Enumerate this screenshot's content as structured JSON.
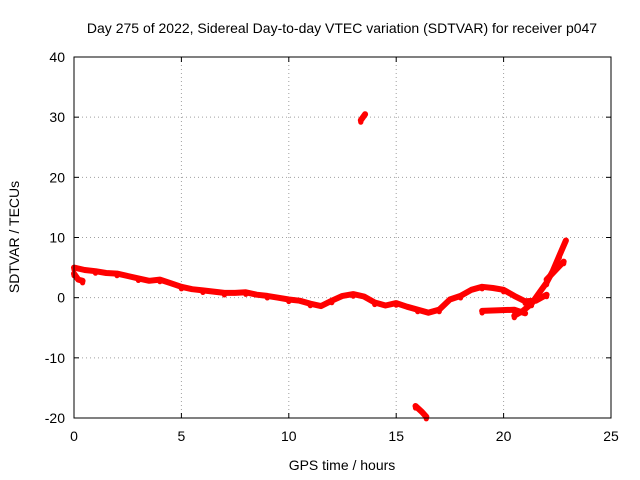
{
  "chart_data": {
    "type": "scatter",
    "title": "Day 275 of 2022, Sidereal Day-to-day VTEC variation (SDTVAR) for receiver p047",
    "xlabel": "GPS time / hours",
    "ylabel": "SDTVAR / TECUs",
    "xlim": [
      0,
      25
    ],
    "ylim": [
      -20,
      40
    ],
    "xticks": [
      0,
      5,
      10,
      15,
      20,
      25
    ],
    "yticks": [
      -20,
      -10,
      0,
      10,
      20,
      30,
      40
    ],
    "grid": true,
    "series": [
      {
        "name": "SDTVAR",
        "color": "#ff0000",
        "segments": [
          [
            [
              0.0,
              5.0
            ],
            [
              0.5,
              4.6
            ],
            [
              1.0,
              4.4
            ],
            [
              1.5,
              4.1
            ],
            [
              2.0,
              4.0
            ],
            [
              2.5,
              3.6
            ],
            [
              3.0,
              3.2
            ],
            [
              3.5,
              2.8
            ],
            [
              4.0,
              3.0
            ],
            [
              4.5,
              2.4
            ],
            [
              5.0,
              1.8
            ],
            [
              5.5,
              1.4
            ],
            [
              6.0,
              1.2
            ],
            [
              6.5,
              1.0
            ],
            [
              7.0,
              0.8
            ],
            [
              7.5,
              0.8
            ],
            [
              8.0,
              0.9
            ],
            [
              8.5,
              0.5
            ],
            [
              9.0,
              0.3
            ],
            [
              9.5,
              0.0
            ],
            [
              10.0,
              -0.3
            ],
            [
              10.5,
              -0.5
            ],
            [
              11.0,
              -1.0
            ],
            [
              11.5,
              -1.4
            ],
            [
              12.0,
              -0.5
            ],
            [
              12.5,
              0.3
            ],
            [
              13.0,
              0.6
            ],
            [
              13.5,
              0.2
            ],
            [
              14.0,
              -0.8
            ],
            [
              14.5,
              -1.3
            ],
            [
              15.0,
              -0.9
            ],
            [
              15.5,
              -1.5
            ],
            [
              16.0,
              -2.0
            ],
            [
              16.5,
              -2.5
            ],
            [
              17.0,
              -2.0
            ],
            [
              17.5,
              -0.3
            ],
            [
              18.0,
              0.3
            ],
            [
              18.5,
              1.3
            ],
            [
              19.0,
              1.8
            ],
            [
              19.5,
              1.6
            ],
            [
              20.0,
              1.3
            ],
            [
              20.5,
              0.3
            ],
            [
              21.0,
              -0.6
            ],
            [
              21.5,
              -0.5
            ],
            [
              22.0,
              0.5
            ]
          ],
          [
            [
              0.0,
              4.0
            ],
            [
              0.2,
              3.0
            ],
            [
              0.4,
              2.8
            ]
          ],
          [
            [
              19.0,
              -2.2
            ],
            [
              19.8,
              -2.1
            ],
            [
              20.5,
              -2.0
            ],
            [
              21.0,
              -2.6
            ]
          ],
          [
            [
              20.5,
              -3.0
            ],
            [
              20.9,
              -2.2
            ],
            [
              21.3,
              -1.0
            ],
            [
              21.7,
              1.0
            ],
            [
              22.0,
              2.5
            ],
            [
              22.3,
              4.5
            ],
            [
              22.6,
              7.0
            ],
            [
              22.9,
              9.5
            ]
          ],
          [
            [
              22.0,
              3.0
            ],
            [
              22.4,
              4.5
            ],
            [
              22.8,
              6.0
            ]
          ],
          [
            [
              13.35,
              29.5
            ],
            [
              13.55,
              30.5
            ]
          ],
          [
            [
              15.9,
              -18.0
            ],
            [
              16.2,
              -19.0
            ],
            [
              16.4,
              -19.8
            ]
          ]
        ]
      }
    ]
  }
}
